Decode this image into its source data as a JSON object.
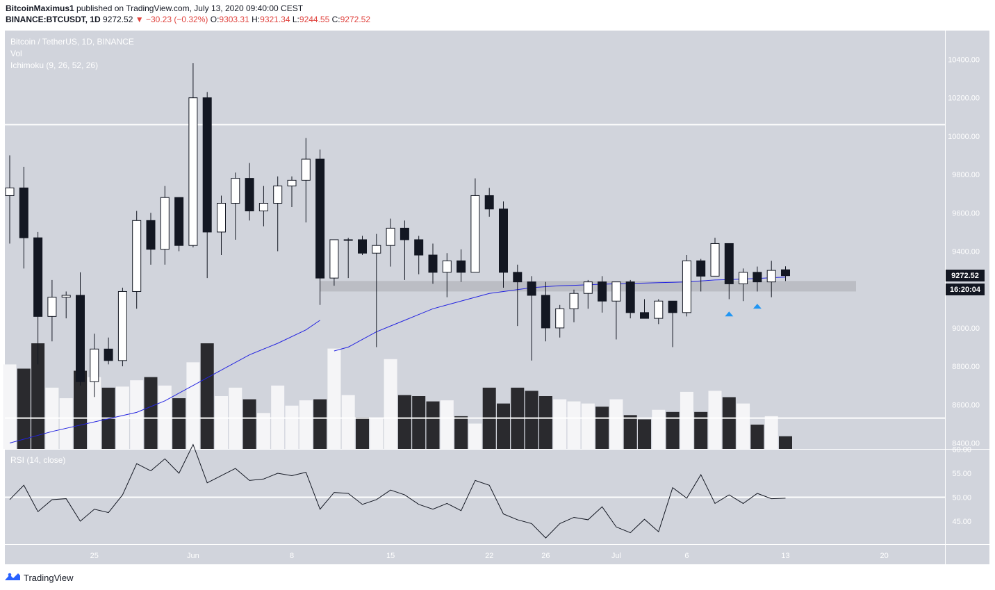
{
  "header": {
    "author": "BitcoinMaximus1",
    "published_text": "published on TradingView.com, July 13, 2020 09:40:00 CEST",
    "symbol": "BINANCE:BTCUSDT, 1D",
    "last": "9272.52",
    "change": "−30.23 (−0.32%)",
    "o_label": "O:",
    "o": "9303.31",
    "h_label": "H:",
    "h": "9321.34",
    "l_label": "L:",
    "l": "9244.55",
    "c_label": "C:",
    "c": "9272.52"
  },
  "legend": {
    "title": "Bitcoin / TetherUS, 1D, BINANCE",
    "vol": "Vol",
    "ichimoku": "Ichimoku (9, 26, 52, 26)"
  },
  "rsi_label": "RSI (14, close)",
  "price_tag": "9272.52",
  "countdown_tag": "16:20:04",
  "footer": {
    "brand": "TradingView"
  },
  "colors": {
    "background": "#d1d4dc",
    "bull": "#ffffff",
    "bear": "#131722",
    "vol_bull": "#f5f5f7",
    "vol_bear": "#2a2a2e",
    "baseline": "#2323e0",
    "support_zone": "#b7b9bf",
    "marker": "#2196f3"
  },
  "chart_data": {
    "type": "candlestick",
    "dates": [
      "2020-05-19",
      "2020-05-20",
      "2020-05-21",
      "2020-05-22",
      "2020-05-23",
      "2020-05-24",
      "2020-05-25",
      "2020-05-26",
      "2020-05-27",
      "2020-05-28",
      "2020-05-29",
      "2020-05-30",
      "2020-05-31",
      "2020-06-01",
      "2020-06-02",
      "2020-06-03",
      "2020-06-04",
      "2020-06-05",
      "2020-06-06",
      "2020-06-07",
      "2020-06-08",
      "2020-06-09",
      "2020-06-10",
      "2020-06-11",
      "2020-06-12",
      "2020-06-13",
      "2020-06-14",
      "2020-06-15",
      "2020-06-16",
      "2020-06-17",
      "2020-06-18",
      "2020-06-19",
      "2020-06-20",
      "2020-06-21",
      "2020-06-22",
      "2020-06-23",
      "2020-06-24",
      "2020-06-25",
      "2020-06-26",
      "2020-06-27",
      "2020-06-28",
      "2020-06-29",
      "2020-06-30",
      "2020-07-01",
      "2020-07-02",
      "2020-07-03",
      "2020-07-04",
      "2020-07-05",
      "2020-07-06",
      "2020-07-07",
      "2020-07-08",
      "2020-07-09",
      "2020-07-10",
      "2020-07-11",
      "2020-07-12",
      "2020-07-13"
    ],
    "ohlc": [
      [
        9690,
        9900,
        9440,
        9730
      ],
      [
        9730,
        9840,
        9310,
        9470
      ],
      [
        9470,
        9500,
        8810,
        9060
      ],
      [
        9060,
        9250,
        8930,
        9160
      ],
      [
        9160,
        9190,
        9050,
        9170
      ],
      [
        9170,
        9290,
        8700,
        8720
      ],
      [
        8720,
        8970,
        8640,
        8890
      ],
      [
        8890,
        8950,
        8810,
        8830
      ],
      [
        8830,
        9210,
        8800,
        9190
      ],
      [
        9190,
        9610,
        9100,
        9560
      ],
      [
        9560,
        9600,
        9330,
        9410
      ],
      [
        9410,
        9740,
        9330,
        9680
      ],
      [
        9680,
        9680,
        9400,
        9430
      ],
      [
        9430,
        10380,
        9420,
        10200
      ],
      [
        10200,
        10230,
        9260,
        9500
      ],
      [
        9500,
        9690,
        9380,
        9650
      ],
      [
        9650,
        9810,
        9460,
        9780
      ],
      [
        9780,
        9860,
        9560,
        9610
      ],
      [
        9610,
        9740,
        9530,
        9650
      ],
      [
        9650,
        9790,
        9400,
        9740
      ],
      [
        9740,
        9790,
        9630,
        9770
      ],
      [
        9770,
        9990,
        9550,
        9880
      ],
      [
        9880,
        9930,
        9120,
        9260
      ],
      [
        9260,
        9450,
        9220,
        9460
      ],
      [
        9460,
        9470,
        9260,
        9460
      ],
      [
        9460,
        9480,
        9380,
        9390
      ],
      [
        9390,
        9490,
        8900,
        9430
      ],
      [
        9430,
        9570,
        9320,
        9520
      ],
      [
        9520,
        9560,
        9250,
        9460
      ],
      [
        9460,
        9480,
        9280,
        9380
      ],
      [
        9380,
        9440,
        9230,
        9290
      ],
      [
        9290,
        9390,
        9160,
        9350
      ],
      [
        9350,
        9410,
        9240,
        9290
      ],
      [
        9290,
        9780,
        9290,
        9690
      ],
      [
        9690,
        9730,
        9580,
        9620
      ],
      [
        9620,
        9660,
        9210,
        9290
      ],
      [
        9290,
        9330,
        9010,
        9240
      ],
      [
        9240,
        9270,
        8830,
        9170
      ],
      [
        9170,
        9240,
        8930,
        9000
      ],
      [
        9000,
        9120,
        8950,
        9100
      ],
      [
        9100,
        9200,
        9030,
        9180
      ],
      [
        9180,
        9250,
        9100,
        9240
      ],
      [
        9240,
        9270,
        9080,
        9140
      ],
      [
        9140,
        9240,
        8940,
        9240
      ],
      [
        9240,
        9250,
        9050,
        9080
      ],
      [
        9080,
        9150,
        9050,
        9050
      ],
      [
        9050,
        9150,
        9020,
        9140
      ],
      [
        9140,
        9140,
        8900,
        9080
      ],
      [
        9080,
        9380,
        9060,
        9350
      ],
      [
        9350,
        9360,
        9190,
        9270
      ],
      [
        9270,
        9470,
        9270,
        9440
      ],
      [
        9440,
        9440,
        9150,
        9230
      ],
      [
        9230,
        9310,
        9140,
        9290
      ],
      [
        9290,
        9320,
        9190,
        9240
      ],
      [
        9240,
        9350,
        9160,
        9300
      ],
      [
        9303.31,
        9321.34,
        9244.55,
        9272.52
      ]
    ],
    "volume_relative": [
      0.8,
      0.76,
      1.0,
      0.58,
      0.48,
      0.74,
      0.68,
      0.58,
      0.59,
      0.65,
      0.68,
      0.6,
      0.48,
      0.82,
      1.0,
      0.5,
      0.58,
      0.47,
      0.34,
      0.6,
      0.41,
      0.46,
      0.47,
      0.95,
      0.51,
      0.3,
      0.29,
      0.85,
      0.51,
      0.5,
      0.45,
      0.46,
      0.31,
      0.24,
      0.58,
      0.43,
      0.58,
      0.55,
      0.5,
      0.47,
      0.45,
      0.43,
      0.4,
      0.47,
      0.32,
      0.28,
      0.37,
      0.35,
      0.54,
      0.35,
      0.55,
      0.49,
      0.43,
      0.23,
      0.31,
      0.12
    ],
    "baseline_line": [
      null,
      null,
      null,
      null,
      null,
      null,
      null,
      null,
      null,
      null,
      null,
      null,
      null,
      null,
      null,
      null,
      null,
      null,
      null,
      null,
      null,
      null,
      null,
      8880,
      8900,
      8940,
      8980,
      9010,
      9040,
      9070,
      9100,
      9120,
      9140,
      9160,
      9180,
      9190,
      9200,
      9210,
      9215,
      9220,
      9222,
      9225,
      9228,
      9230,
      9232,
      9234,
      9236,
      9238,
      9240,
      9245,
      9250,
      9252,
      9255,
      9258,
      9262,
      9265
    ],
    "baseline_early": [
      [
        0,
        8400
      ],
      [
        3,
        8460
      ],
      [
        6,
        8510
      ],
      [
        9,
        8560
      ],
      [
        11,
        8620
      ],
      [
        13,
        8700
      ],
      [
        15,
        8780
      ],
      [
        17,
        8860
      ],
      [
        19,
        8920
      ],
      [
        21,
        8990
      ],
      [
        22,
        9040
      ]
    ],
    "rsi": [
      49.5,
      52.5,
      47,
      49.5,
      49.7,
      45,
      47.5,
      46.8,
      50.5,
      57,
      55.5,
      58,
      55,
      61,
      53,
      54.5,
      56,
      53.5,
      53.8,
      55,
      54.5,
      55.2,
      47.5,
      51,
      50.8,
      48.5,
      49.5,
      51.5,
      50.5,
      48.5,
      47.5,
      48.7,
      47.2,
      53.5,
      52.5,
      46.5,
      45.3,
      44.5,
      41.5,
      44.5,
      45.8,
      45.3,
      48,
      43.8,
      42.6,
      45.4,
      42.8,
      52,
      49.8,
      54.7,
      48.7,
      50.5,
      48.7,
      50.8,
      49.7,
      49.8
    ],
    "price_axis": {
      "min": 8350,
      "max": 10480,
      "ticks": [
        8400,
        8600,
        8800,
        9000,
        9200,
        9400,
        9600,
        9800,
        10000,
        10200,
        10400
      ],
      "tick_labels": [
        "8400.00",
        "8600.00",
        "8800.00",
        "9000.00",
        "9200.00",
        "9400.00",
        "9600.00",
        "9800.00",
        "10000.00",
        "10200.00",
        "10400.00"
      ]
    },
    "rsi_axis": {
      "ticks": [
        45,
        50,
        55,
        60
      ],
      "tick_labels": [
        "45.00",
        "50.00",
        "55.00",
        "60.00"
      ]
    },
    "x_axis": {
      "tick_labels": [
        {
          "date": "2020-05-25",
          "label": "25"
        },
        {
          "date": "2020-06-01",
          "label": "Jun"
        },
        {
          "date": "2020-06-08",
          "label": "8"
        },
        {
          "date": "2020-06-15",
          "label": "15"
        },
        {
          "date": "2020-06-22",
          "label": "22"
        },
        {
          "date": "2020-06-26",
          "label": "26"
        },
        {
          "date": "2020-07-01",
          "label": "Jul"
        },
        {
          "date": "2020-07-06",
          "label": "6"
        },
        {
          "date": "2020-07-13",
          "label": "13"
        },
        {
          "date": "2020-07-20",
          "label": "20"
        }
      ]
    },
    "horizontal_lines": [
      10060,
      8530
    ],
    "rsi_horizontal_line": 50,
    "support_zone": {
      "from_date": "2020-06-10",
      "to_date": "2020-07-18",
      "low": 9190,
      "high": 9245
    },
    "up_markers": [
      {
        "date": "2020-07-09",
        "price": 9075
      },
      {
        "date": "2020-07-11",
        "price": 9115
      }
    ]
  }
}
